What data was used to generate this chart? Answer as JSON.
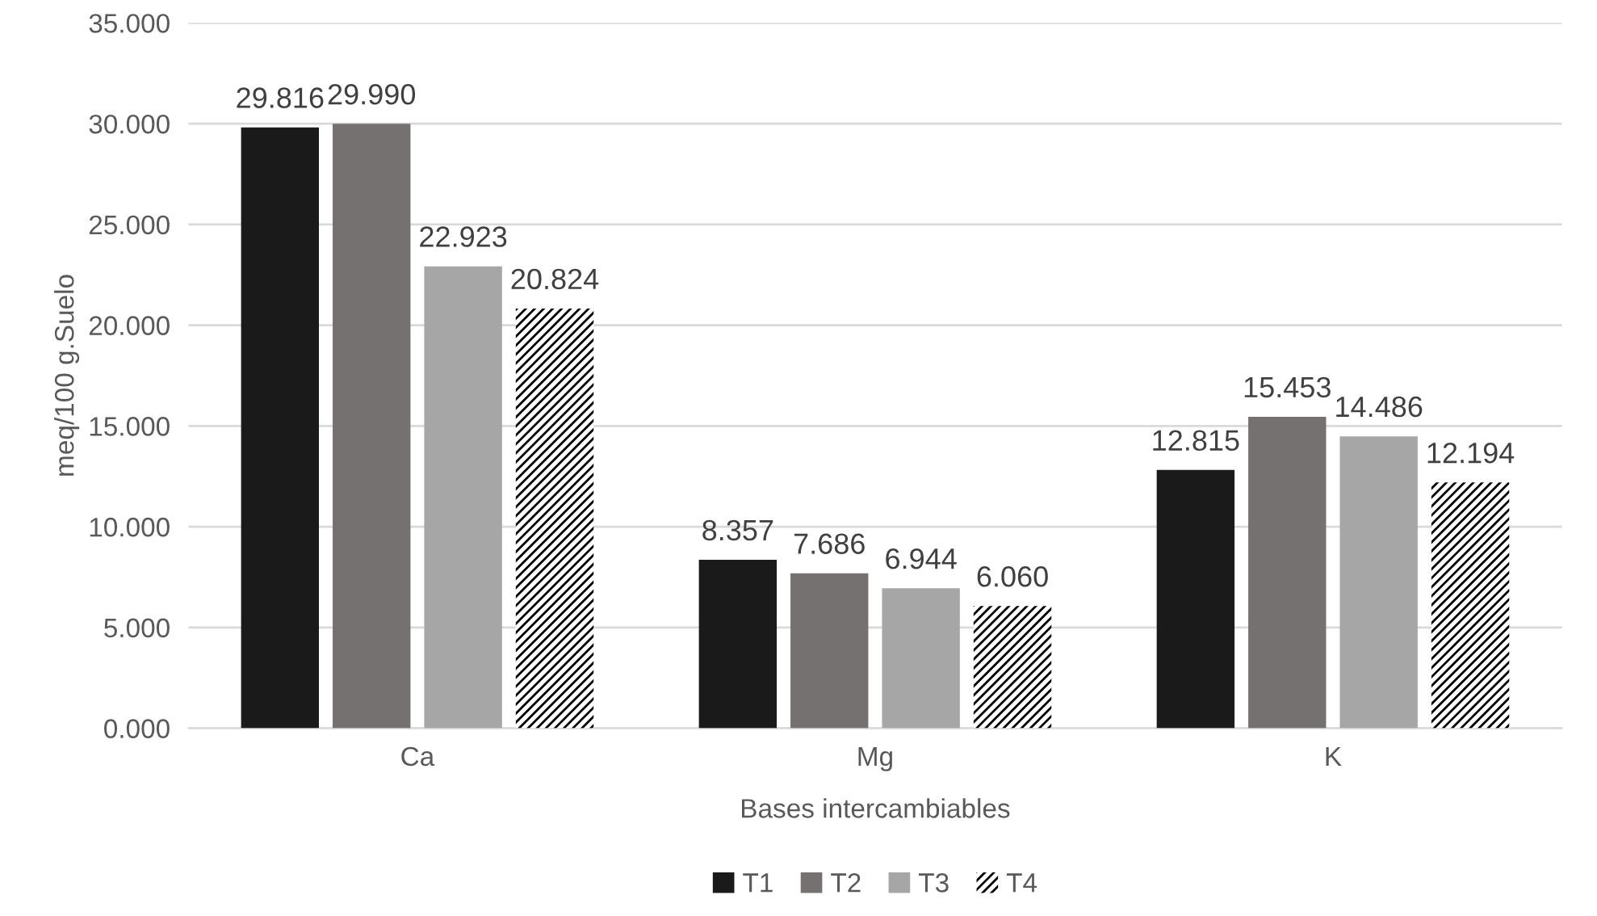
{
  "chart_data": {
    "type": "bar",
    "xlabel": "Bases intercambiables",
    "ylabel": "meq/100 g.Suelo",
    "categories": [
      "Ca",
      "Mg",
      "K"
    ],
    "series": [
      {
        "name": "T1",
        "color": "#1a1a1a",
        "values": [
          29.816,
          8.357,
          12.815
        ],
        "value_labels": [
          "29.816",
          "8.357",
          "12.815"
        ]
      },
      {
        "name": "T2",
        "color": "#767171",
        "values": [
          29.99,
          7.686,
          15.453
        ],
        "value_labels": [
          "29.990",
          "7.686",
          "15.453"
        ]
      },
      {
        "name": "T3",
        "color": "#a6a6a6",
        "values": [
          22.923,
          6.944,
          14.486
        ],
        "value_labels": [
          "22.923",
          "6.944",
          "14.486"
        ]
      },
      {
        "name": "T4",
        "color": "#000000",
        "values": [
          20.824,
          6.06,
          12.194
        ],
        "value_labels": [
          "20.824",
          "6.060",
          "12.194"
        ]
      }
    ],
    "ylim": [
      0,
      35
    ],
    "yticks": [
      {
        "value": 0,
        "label": "0.000"
      },
      {
        "value": 5,
        "label": "5.000"
      },
      {
        "value": 10,
        "label": "10.000"
      },
      {
        "value": 15,
        "label": "15.000"
      },
      {
        "value": 20,
        "label": "20.000"
      },
      {
        "value": 25,
        "label": "25.000"
      },
      {
        "value": 30,
        "label": "30.000"
      },
      {
        "value": 35,
        "label": "35.000"
      }
    ],
    "grid": "y",
    "legend": "bottom"
  }
}
